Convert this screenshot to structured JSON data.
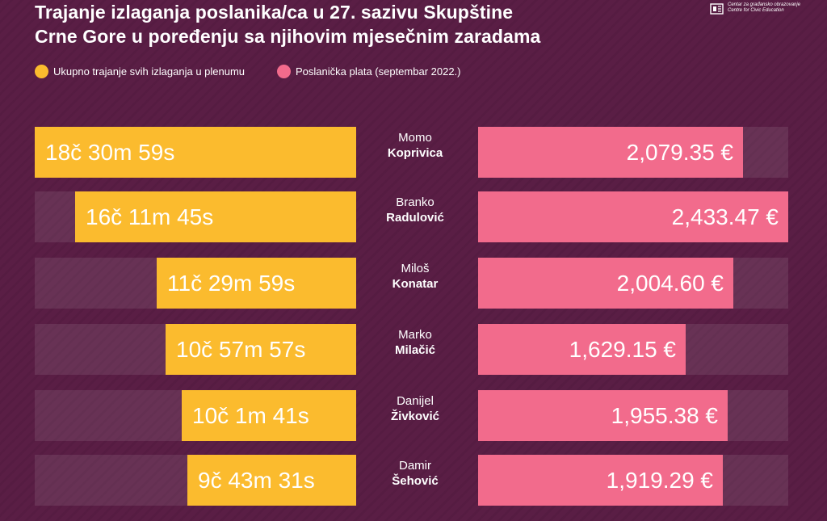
{
  "title_line1": "Trajanje izlaganja poslanika/ca u 27. sazivu Skupštine",
  "title_line2": "Crne Gore u poređenju sa njihovim mjesečnim zaradama",
  "logo": {
    "line1": "Centar za građansko obrazovanje",
    "line2": "Centre for Civic Education"
  },
  "legend": {
    "duration": "Ukupno trajanje svih izlaganja u plenumu",
    "salary": "Poslanička plata (septembar 2022.)"
  },
  "colors": {
    "background": "#5a1e45",
    "duration": "#fbbb2e",
    "salary": "#f26b8c"
  },
  "chart_data": {
    "type": "bar",
    "title": "Trajanje izlaganja poslanika/ca u 27. sazivu Skupštine Crne Gore u poređenju sa njihovim mjesečnim zaradama",
    "categories": [
      "Momo Koprivica",
      "Branko Radulović",
      "Miloš Konatar",
      "Marko Milačić",
      "Danijel Živković",
      "Damir Šehović"
    ],
    "rows": [
      {
        "first": "Momo",
        "last": "Koprivica",
        "duration_label": "18č 30m 59s",
        "duration_seconds": 66659,
        "salary_label": "2,079.35 €",
        "salary": 2079.35
      },
      {
        "first": "Branko",
        "last": "Radulović",
        "duration_label": "16č 11m 45s",
        "duration_seconds": 58305,
        "salary_label": "2,433.47 €",
        "salary": 2433.47
      },
      {
        "first": "Miloš",
        "last": "Konatar",
        "duration_label": "11č 29m 59s",
        "duration_seconds": 41399,
        "salary_label": "2,004.60 €",
        "salary": 2004.6
      },
      {
        "first": "Marko",
        "last": "Milačić",
        "duration_label": "10č 57m 57s",
        "duration_seconds": 39477,
        "salary_label": "1,629.15 €",
        "salary": 1629.15
      },
      {
        "first": "Danijel",
        "last": "Živković",
        "duration_label": "10č 1m 41s",
        "duration_seconds": 36101,
        "salary_label": "1,955.38 €",
        "salary": 1955.38
      },
      {
        "first": "Damir",
        "last": "Šehović",
        "duration_label": "9č 43m 31s",
        "duration_seconds": 35011,
        "salary_label": "1,919.29 €",
        "salary": 1919.29
      }
    ],
    "series": [
      {
        "name": "Ukupno trajanje svih izlaganja u plenumu",
        "unit": "seconds",
        "values": [
          66659,
          58305,
          41399,
          39477,
          36101,
          35011
        ]
      },
      {
        "name": "Poslanička plata (septembar 2022.)",
        "unit": "EUR",
        "values": [
          2079.35,
          2433.47,
          2004.6,
          1629.15,
          1955.38,
          1919.29
        ]
      }
    ],
    "duration_max": 66659,
    "salary_max": 2433.47
  }
}
